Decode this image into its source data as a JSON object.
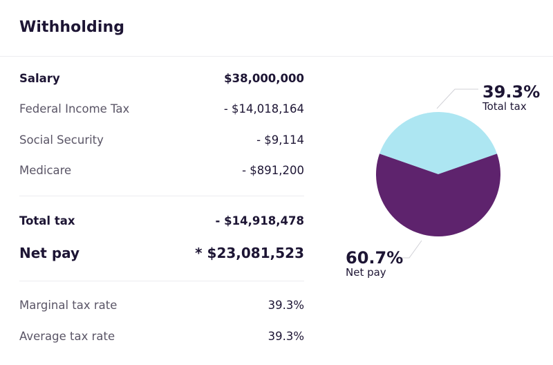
{
  "title": "Withholding",
  "rows": {
    "salary": {
      "label": "Salary",
      "value": "$38,000,000"
    },
    "federal": {
      "label": "Federal Income Tax",
      "value": "- $14,018,164"
    },
    "social": {
      "label": "Social Security",
      "value": "- $9,114"
    },
    "medicare": {
      "label": "Medicare",
      "value": "- $891,200"
    },
    "total_tax": {
      "label": "Total tax",
      "value": "- $14,918,478"
    },
    "net_pay": {
      "label": "Net pay",
      "value": "* $23,081,523"
    },
    "marginal": {
      "label": "Marginal tax rate",
      "value": "39.3%"
    },
    "average": {
      "label": "Average tax rate",
      "value": "39.3%"
    }
  },
  "chart_data": {
    "type": "pie",
    "slices": [
      {
        "name": "Total tax",
        "value": 39.3,
        "label": "39.3%",
        "color": "#ade6f2"
      },
      {
        "name": "Net pay",
        "value": 60.7,
        "label": "60.7%",
        "color": "#5e236d"
      }
    ]
  },
  "colors": {
    "text_dark": "#1d1534",
    "text_muted": "#5a5566",
    "divider": "#ececf0",
    "tax_slice": "#ade6f2",
    "net_slice": "#5e236d"
  }
}
